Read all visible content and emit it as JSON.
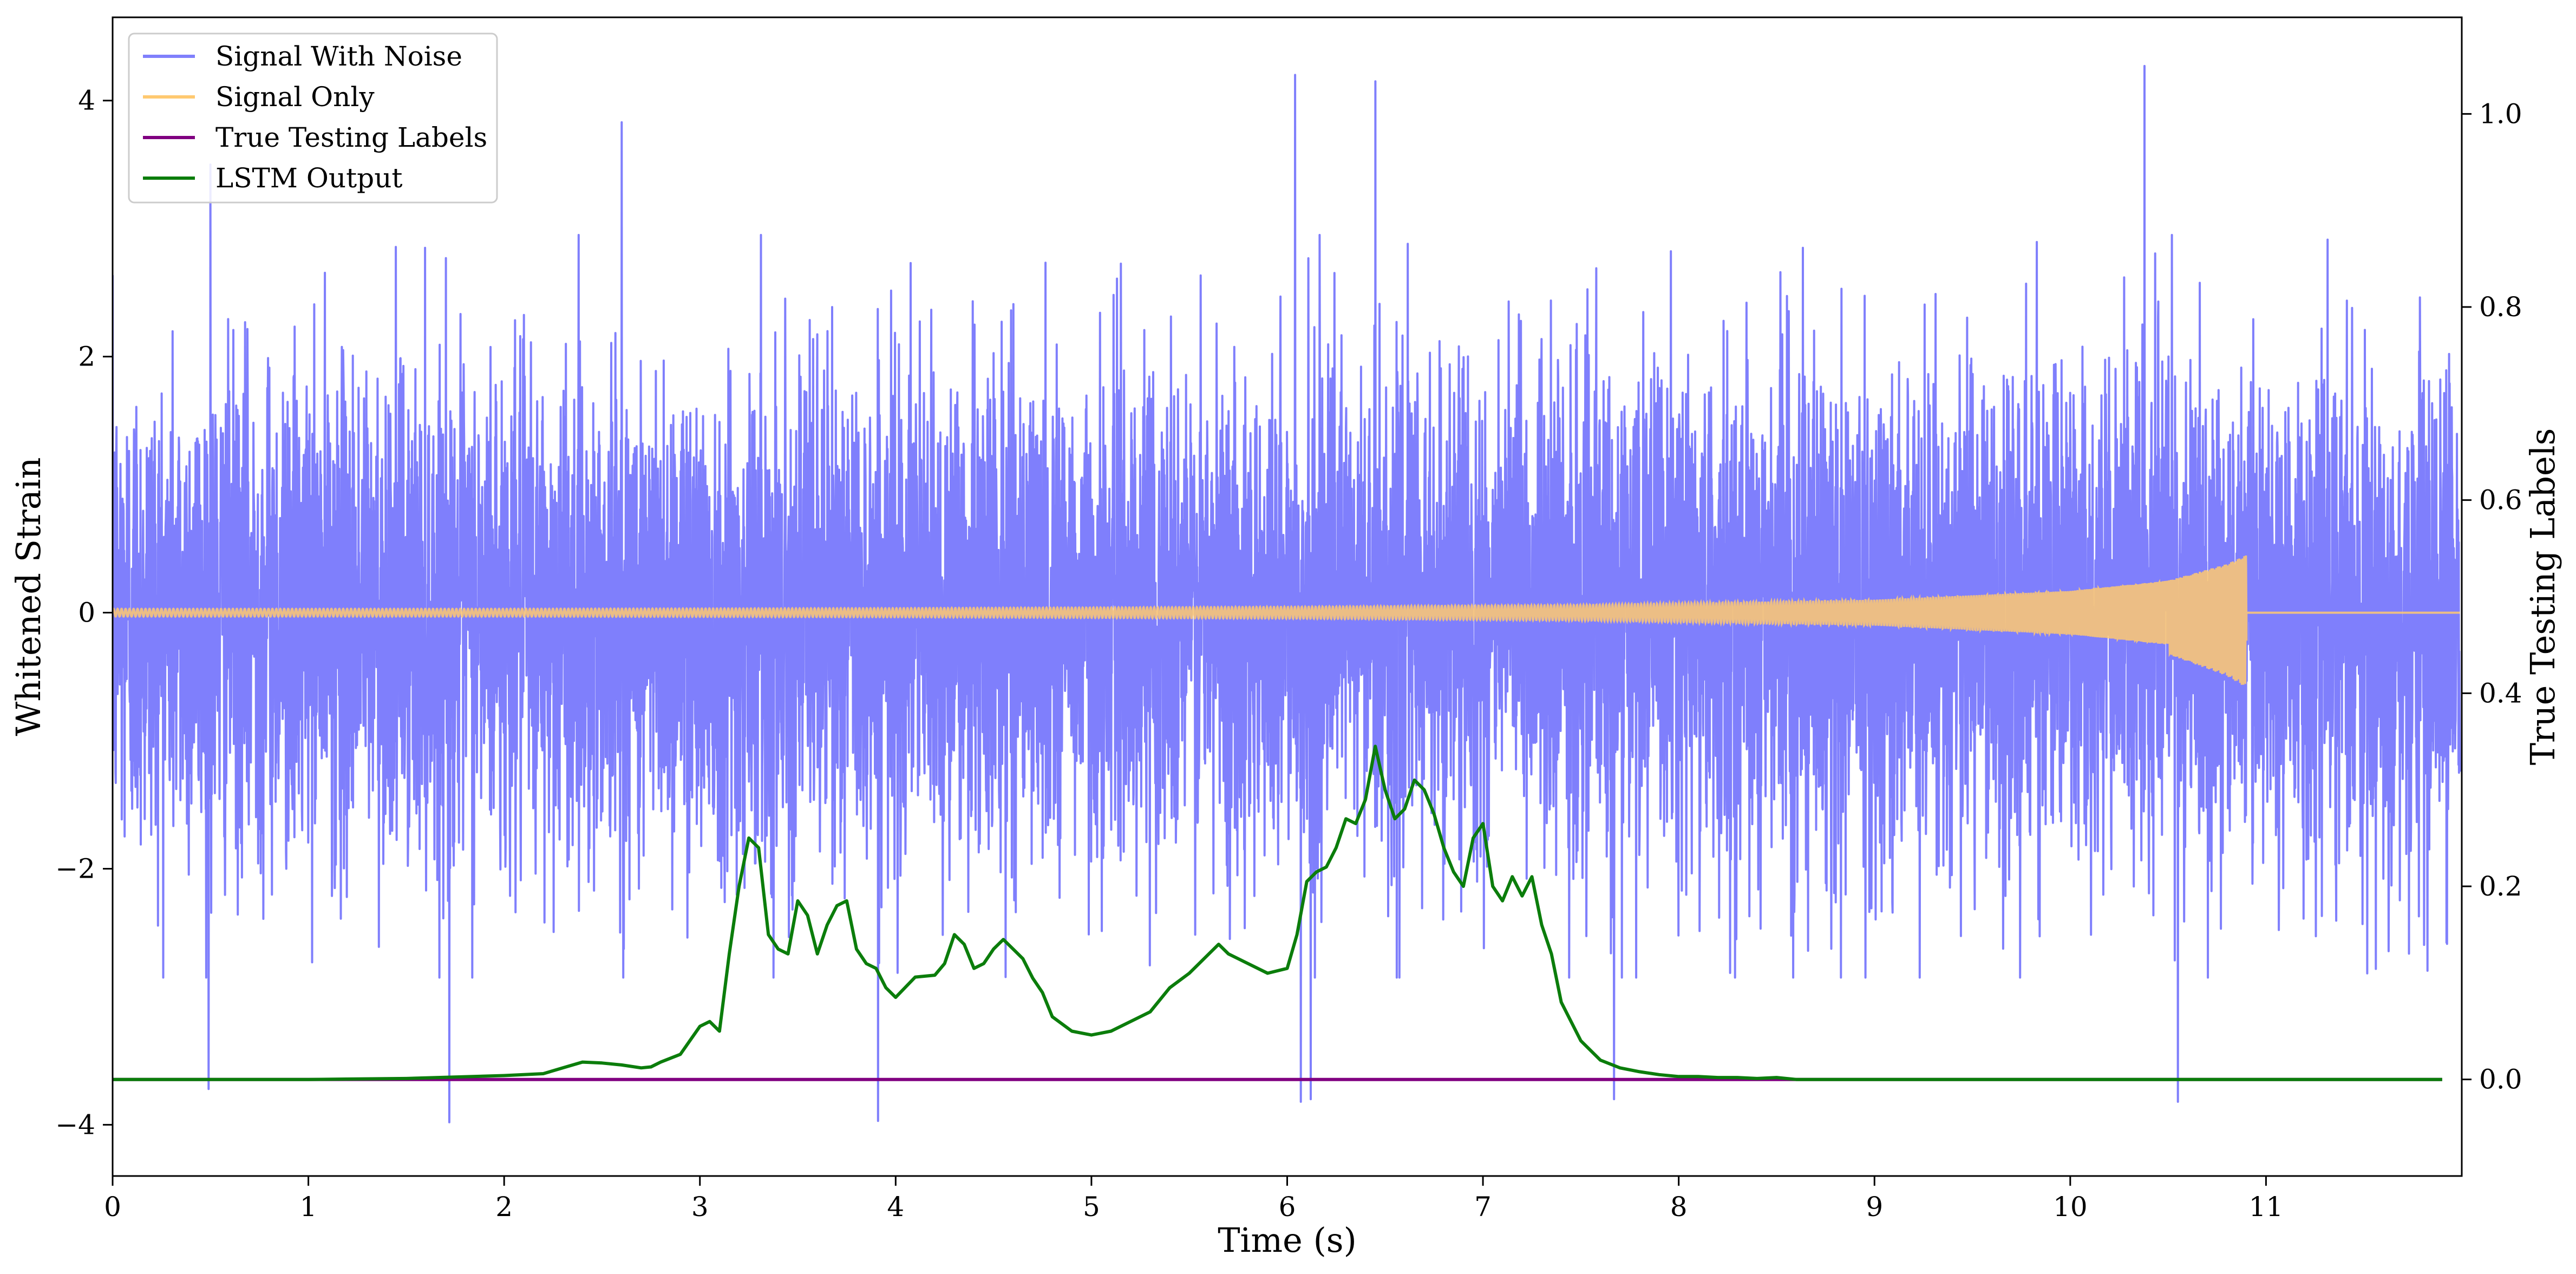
{
  "chart_data": {
    "type": "line",
    "title": "",
    "xlabel": "Time (s)",
    "ylabel_left": "Whitened Strain",
    "ylabel_right": "True Testing Labels",
    "xlim": [
      0,
      12
    ],
    "ylim_left": [
      -4.4,
      4.65
    ],
    "ylim_right": [
      -0.1,
      1.1
    ],
    "x_ticks": [
      "0",
      "1",
      "2",
      "3",
      "4",
      "5",
      "6",
      "7",
      "8",
      "9",
      "10",
      "11"
    ],
    "y_ticks_left": [
      "−4",
      "−2",
      "0",
      "2",
      "4"
    ],
    "y_ticks_right": [
      "0.0",
      "0.2",
      "0.4",
      "0.6",
      "0.8",
      "1.0"
    ],
    "grid": false,
    "legend_position": "top-left",
    "colors": {
      "signal_with_noise": "#7f7ffc",
      "signal_only": "#ffc970",
      "true_labels": "#800080",
      "lstm_output": "#0b7d0b"
    },
    "series": [
      {
        "name": "Signal With Noise",
        "axis": "left",
        "description_values": "dense whitened noise, roughly in [-2.8, 2.9] with spikes up to 4.25 and down to -3.9",
        "peaks": [
          {
            "x": 0.49,
            "y": -3.72
          },
          {
            "x": 0.5,
            "y": 3.5
          },
          {
            "x": 1.72,
            "y": -3.98
          },
          {
            "x": 2.6,
            "y": 3.83
          },
          {
            "x": 3.91,
            "y": -3.97
          },
          {
            "x": 6.04,
            "y": 4.2
          },
          {
            "x": 6.07,
            "y": -3.82
          },
          {
            "x": 6.12,
            "y": -3.8
          },
          {
            "x": 6.45,
            "y": 4.15
          },
          {
            "x": 7.67,
            "y": -3.8
          },
          {
            "x": 10.38,
            "y": 4.27
          },
          {
            "x": 10.55,
            "y": -3.82
          }
        ]
      },
      {
        "name": "Signal Only",
        "axis": "left",
        "description_values": "chirp waveform: amplitude grows from ~0.03 to ~0.45 (upper) and ~-0.6 (lower) at merger t=10.9 s, then zero",
        "envelope": [
          {
            "x": 0.0,
            "y": 0.03
          },
          {
            "x": 2.0,
            "y": 0.03
          },
          {
            "x": 4.0,
            "y": 0.035
          },
          {
            "x": 6.0,
            "y": 0.045
          },
          {
            "x": 7.5,
            "y": 0.06
          },
          {
            "x": 9.0,
            "y": 0.1
          },
          {
            "x": 10.0,
            "y": 0.17
          },
          {
            "x": 10.5,
            "y": 0.25
          },
          {
            "x": 10.8,
            "y": 0.38
          },
          {
            "x": 10.9,
            "y": 0.45
          }
        ],
        "merger_time": 10.9
      },
      {
        "name": "True Testing Labels",
        "axis": "right",
        "x": [
          0,
          11.9
        ],
        "y": [
          0,
          0
        ]
      },
      {
        "name": "LSTM Output",
        "axis": "right",
        "x": [
          0.0,
          1.0,
          1.5,
          2.0,
          2.2,
          2.3,
          2.4,
          2.5,
          2.6,
          2.7,
          2.75,
          2.8,
          2.9,
          3.0,
          3.05,
          3.1,
          3.15,
          3.2,
          3.25,
          3.3,
          3.35,
          3.4,
          3.45,
          3.5,
          3.55,
          3.6,
          3.65,
          3.7,
          3.75,
          3.8,
          3.85,
          3.9,
          3.95,
          4.0,
          4.1,
          4.2,
          4.25,
          4.3,
          4.35,
          4.4,
          4.45,
          4.5,
          4.55,
          4.6,
          4.65,
          4.7,
          4.75,
          4.8,
          4.9,
          5.0,
          5.1,
          5.2,
          5.3,
          5.4,
          5.5,
          5.6,
          5.65,
          5.7,
          5.8,
          5.9,
          6.0,
          6.05,
          6.1,
          6.15,
          6.2,
          6.25,
          6.3,
          6.35,
          6.4,
          6.45,
          6.5,
          6.55,
          6.6,
          6.65,
          6.7,
          6.75,
          6.8,
          6.85,
          6.9,
          6.95,
          7.0,
          7.05,
          7.1,
          7.15,
          7.2,
          7.25,
          7.3,
          7.35,
          7.4,
          7.5,
          7.6,
          7.7,
          7.8,
          7.9,
          8.0,
          8.1,
          8.2,
          8.3,
          8.4,
          8.5,
          8.6,
          8.7,
          8.8,
          9.0,
          9.5,
          10.0,
          11.9
        ],
        "y": [
          0.0,
          0.0,
          0.001,
          0.004,
          0.006,
          0.012,
          0.018,
          0.017,
          0.015,
          0.012,
          0.013,
          0.018,
          0.026,
          0.055,
          0.06,
          0.05,
          0.13,
          0.2,
          0.25,
          0.24,
          0.15,
          0.135,
          0.13,
          0.185,
          0.17,
          0.13,
          0.16,
          0.18,
          0.185,
          0.135,
          0.12,
          0.115,
          0.095,
          0.085,
          0.106,
          0.108,
          0.12,
          0.15,
          0.14,
          0.115,
          0.12,
          0.135,
          0.145,
          0.135,
          0.125,
          0.105,
          0.09,
          0.065,
          0.05,
          0.046,
          0.05,
          0.06,
          0.07,
          0.095,
          0.11,
          0.13,
          0.14,
          0.13,
          0.12,
          0.11,
          0.115,
          0.15,
          0.205,
          0.215,
          0.22,
          0.24,
          0.27,
          0.265,
          0.29,
          0.345,
          0.3,
          0.27,
          0.28,
          0.31,
          0.3,
          0.275,
          0.24,
          0.215,
          0.2,
          0.25,
          0.265,
          0.2,
          0.185,
          0.21,
          0.19,
          0.21,
          0.16,
          0.13,
          0.08,
          0.04,
          0.02,
          0.012,
          0.008,
          0.005,
          0.003,
          0.003,
          0.002,
          0.002,
          0.001,
          0.002,
          0.0,
          0.0,
          0.0,
          0.0,
          0.0,
          0.0,
          0.0
        ]
      }
    ]
  }
}
